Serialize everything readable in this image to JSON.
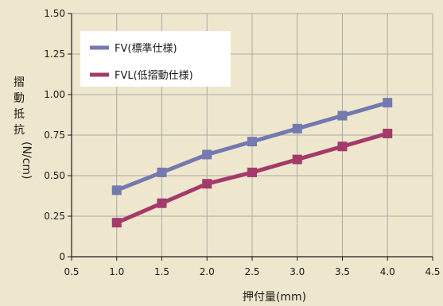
{
  "chart_data": {
    "type": "line",
    "xlabel": "押付量(mm)",
    "ylabel": "摺動抵抗(N/cm)",
    "xlim": [
      0.5,
      4.5
    ],
    "ylim": [
      0,
      1.5
    ],
    "xticks": [
      "0.5",
      "1.0",
      "1.5",
      "2.0",
      "2.5",
      "3.0",
      "3.5",
      "4.0",
      "4.5"
    ],
    "yticks": [
      "0",
      "0.25",
      "0.50",
      "0.75",
      "1.00",
      "1.25",
      "1.50"
    ],
    "grid": true,
    "legend_position": "top-left",
    "x": [
      1.0,
      1.5,
      2.0,
      2.5,
      3.0,
      3.5,
      4.0
    ],
    "series": [
      {
        "name": "FV(標準仕様)",
        "color": "#7479b0",
        "values": [
          0.41,
          0.52,
          0.63,
          0.71,
          0.79,
          0.87,
          0.95
        ]
      },
      {
        "name": "FVL(低摺動仕様)",
        "color": "#a43a6b",
        "values": [
          0.21,
          0.33,
          0.45,
          0.52,
          0.6,
          0.68,
          0.76
        ]
      }
    ]
  }
}
